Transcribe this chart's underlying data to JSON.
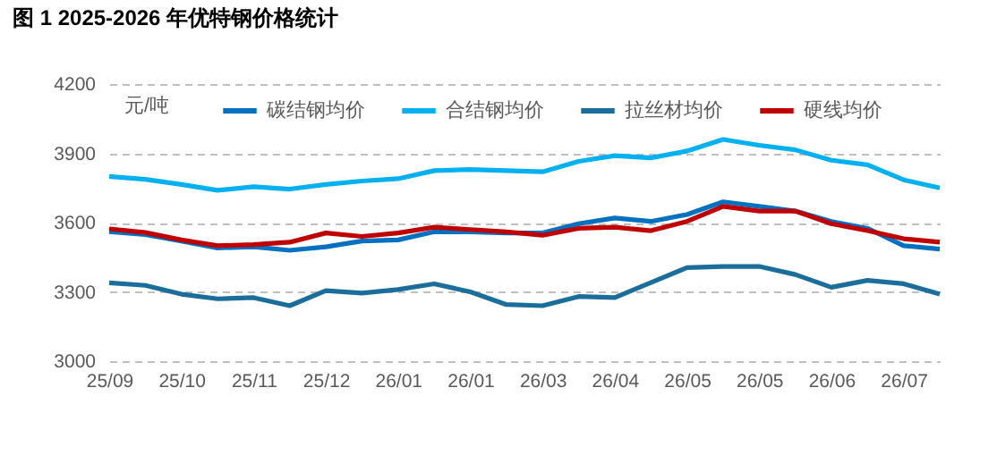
{
  "chart_data": {
    "type": "line",
    "title": "图 1 2025-2026 年优特钢价格统计",
    "ylabel": "元/吨",
    "categories": [
      "25/09",
      null,
      "25/10",
      null,
      "25/11",
      null,
      "25/12",
      null,
      "26/01",
      null,
      "26/01",
      null,
      "26/03",
      null,
      "26/04",
      null,
      "26/05",
      null,
      "26/05",
      null,
      "26/06",
      null,
      "26/07",
      null
    ],
    "ylim": [
      3000,
      4200
    ],
    "yticks": [
      3000,
      3300,
      3600,
      3900,
      4200
    ],
    "grid": "y",
    "legend": "top",
    "line_style": "solid",
    "series": [
      {
        "name": "碳结钢均价",
        "color": "#0070c0",
        "values": [
          3561,
          3548,
          3520,
          3490,
          3495,
          3480,
          3495,
          3520,
          3525,
          3560,
          3560,
          3555,
          3555,
          3595,
          3620,
          3605,
          3635,
          3690,
          3670,
          3650,
          3605,
          3575,
          3500,
          3485
        ]
      },
      {
        "name": "合结钢均价",
        "color": "#00b0f0",
        "values": [
          3800,
          3787,
          3765,
          3740,
          3755,
          3745,
          3765,
          3780,
          3790,
          3825,
          3830,
          3825,
          3820,
          3865,
          3890,
          3880,
          3910,
          3960,
          3935,
          3915,
          3870,
          3850,
          3785,
          3750
        ]
      },
      {
        "name": "拉丝材均价",
        "color": "#1b6e9c",
        "values": [
          3339,
          3328,
          3290,
          3270,
          3275,
          3240,
          3305,
          3295,
          3310,
          3335,
          3300,
          3245,
          3240,
          3280,
          3275,
          3340,
          3405,
          3410,
          3410,
          3375,
          3320,
          3350,
          3335,
          3290
        ]
      },
      {
        "name": "硬线均价",
        "color": "#c00000",
        "values": [
          3573,
          3557,
          3525,
          3500,
          3505,
          3515,
          3555,
          3540,
          3555,
          3580,
          3570,
          3560,
          3545,
          3575,
          3580,
          3565,
          3605,
          3670,
          3650,
          3650,
          3595,
          3565,
          3530,
          3515
        ]
      }
    ]
  }
}
